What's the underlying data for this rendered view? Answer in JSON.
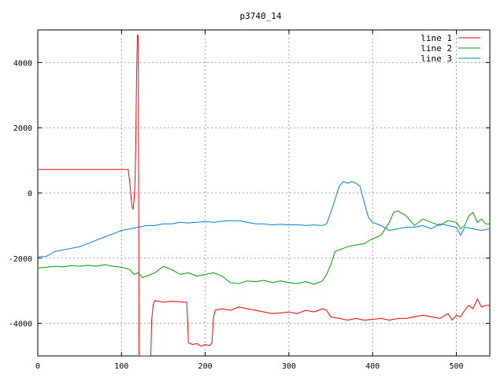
{
  "chart_data": {
    "type": "line",
    "title": "p3740_14",
    "xlim": [
      0,
      540
    ],
    "ylim": [
      -5000,
      5000
    ],
    "x_ticks": [
      0,
      100,
      200,
      300,
      400,
      500
    ],
    "y_ticks": [
      -4000,
      -2000,
      0,
      2000,
      4000
    ],
    "grid": true,
    "legend_position": "top-right",
    "series": [
      {
        "name": "line 1",
        "color": "#ff0000",
        "points": [
          [
            0,
            720
          ],
          [
            20,
            720
          ],
          [
            40,
            720
          ],
          [
            60,
            720
          ],
          [
            80,
            720
          ],
          [
            100,
            720
          ],
          [
            108,
            720
          ],
          [
            110,
            300
          ],
          [
            112,
            -300
          ],
          [
            113,
            -450
          ],
          [
            114,
            -500
          ],
          [
            115,
            -200
          ],
          [
            116,
            200
          ],
          [
            117,
            1500
          ],
          [
            118,
            3500
          ],
          [
            119,
            4850
          ],
          [
            120,
            4800
          ],
          [
            120.5,
            -300
          ],
          [
            121,
            -5000
          ],
          [
            135,
            -5000
          ],
          [
            136,
            -3900
          ],
          [
            138,
            -3400
          ],
          [
            140,
            -3300
          ],
          [
            150,
            -3350
          ],
          [
            160,
            -3320
          ],
          [
            170,
            -3340
          ],
          [
            175,
            -3350
          ],
          [
            178,
            -3350
          ],
          [
            180,
            -4600
          ],
          [
            185,
            -4650
          ],
          [
            190,
            -4620
          ],
          [
            195,
            -4700
          ],
          [
            200,
            -4650
          ],
          [
            205,
            -4680
          ],
          [
            208,
            -4600
          ],
          [
            210,
            -3800
          ],
          [
            212,
            -3600
          ],
          [
            220,
            -3550
          ],
          [
            230,
            -3600
          ],
          [
            240,
            -3500
          ],
          [
            250,
            -3550
          ],
          [
            260,
            -3600
          ],
          [
            270,
            -3650
          ],
          [
            280,
            -3700
          ],
          [
            290,
            -3680
          ],
          [
            300,
            -3650
          ],
          [
            310,
            -3700
          ],
          [
            320,
            -3600
          ],
          [
            330,
            -3650
          ],
          [
            340,
            -3550
          ],
          [
            345,
            -3600
          ],
          [
            350,
            -3800
          ],
          [
            360,
            -3850
          ],
          [
            370,
            -3900
          ],
          [
            380,
            -3850
          ],
          [
            390,
            -3900
          ],
          [
            400,
            -3880
          ],
          [
            410,
            -3850
          ],
          [
            420,
            -3900
          ],
          [
            430,
            -3850
          ],
          [
            440,
            -3850
          ],
          [
            450,
            -3800
          ],
          [
            460,
            -3750
          ],
          [
            470,
            -3800
          ],
          [
            480,
            -3850
          ],
          [
            490,
            -3700
          ],
          [
            495,
            -3900
          ],
          [
            500,
            -3750
          ],
          [
            505,
            -3800
          ],
          [
            510,
            -3600
          ],
          [
            515,
            -3450
          ],
          [
            520,
            -3550
          ],
          [
            525,
            -3250
          ],
          [
            530,
            -3500
          ],
          [
            535,
            -3450
          ],
          [
            540,
            -3450
          ]
        ]
      },
      {
        "name": "line 2",
        "color": "#00a000",
        "points": [
          [
            0,
            -2300
          ],
          [
            10,
            -2280
          ],
          [
            20,
            -2250
          ],
          [
            30,
            -2270
          ],
          [
            40,
            -2230
          ],
          [
            50,
            -2250
          ],
          [
            60,
            -2220
          ],
          [
            70,
            -2250
          ],
          [
            80,
            -2200
          ],
          [
            90,
            -2250
          ],
          [
            100,
            -2280
          ],
          [
            110,
            -2350
          ],
          [
            115,
            -2500
          ],
          [
            120,
            -2450
          ],
          [
            125,
            -2600
          ],
          [
            130,
            -2550
          ],
          [
            140,
            -2450
          ],
          [
            150,
            -2250
          ],
          [
            160,
            -2350
          ],
          [
            170,
            -2500
          ],
          [
            180,
            -2450
          ],
          [
            190,
            -2550
          ],
          [
            200,
            -2500
          ],
          [
            210,
            -2450
          ],
          [
            220,
            -2550
          ],
          [
            230,
            -2750
          ],
          [
            240,
            -2780
          ],
          [
            250,
            -2700
          ],
          [
            260,
            -2720
          ],
          [
            270,
            -2680
          ],
          [
            280,
            -2750
          ],
          [
            290,
            -2700
          ],
          [
            300,
            -2750
          ],
          [
            310,
            -2780
          ],
          [
            320,
            -2720
          ],
          [
            330,
            -2800
          ],
          [
            340,
            -2700
          ],
          [
            345,
            -2500
          ],
          [
            350,
            -2200
          ],
          [
            355,
            -1800
          ],
          [
            360,
            -1750
          ],
          [
            370,
            -1650
          ],
          [
            380,
            -1600
          ],
          [
            390,
            -1550
          ],
          [
            400,
            -1400
          ],
          [
            410,
            -1300
          ],
          [
            420,
            -900
          ],
          [
            425,
            -600
          ],
          [
            430,
            -550
          ],
          [
            440,
            -700
          ],
          [
            450,
            -1000
          ],
          [
            460,
            -800
          ],
          [
            470,
            -900
          ],
          [
            480,
            -1000
          ],
          [
            490,
            -850
          ],
          [
            500,
            -900
          ],
          [
            505,
            -1100
          ],
          [
            510,
            -1000
          ],
          [
            515,
            -700
          ],
          [
            520,
            -600
          ],
          [
            525,
            -900
          ],
          [
            530,
            -800
          ],
          [
            535,
            -950
          ],
          [
            540,
            -950
          ]
        ]
      },
      {
        "name": "line 3",
        "color": "#0080e0",
        "points": [
          [
            0,
            -1950
          ],
          [
            10,
            -1950
          ],
          [
            20,
            -1800
          ],
          [
            30,
            -1750
          ],
          [
            40,
            -1700
          ],
          [
            50,
            -1650
          ],
          [
            60,
            -1550
          ],
          [
            70,
            -1450
          ],
          [
            80,
            -1350
          ],
          [
            90,
            -1250
          ],
          [
            100,
            -1150
          ],
          [
            110,
            -1100
          ],
          [
            120,
            -1050
          ],
          [
            130,
            -1000
          ],
          [
            140,
            -1000
          ],
          [
            150,
            -950
          ],
          [
            160,
            -950
          ],
          [
            170,
            -900
          ],
          [
            180,
            -920
          ],
          [
            190,
            -900
          ],
          [
            200,
            -880
          ],
          [
            210,
            -900
          ],
          [
            220,
            -870
          ],
          [
            230,
            -850
          ],
          [
            240,
            -850
          ],
          [
            250,
            -900
          ],
          [
            260,
            -950
          ],
          [
            270,
            -950
          ],
          [
            280,
            -980
          ],
          [
            290,
            -960
          ],
          [
            300,
            -980
          ],
          [
            310,
            -970
          ],
          [
            320,
            -1000
          ],
          [
            330,
            -980
          ],
          [
            340,
            -1000
          ],
          [
            345,
            -950
          ],
          [
            350,
            -600
          ],
          [
            355,
            -200
          ],
          [
            360,
            200
          ],
          [
            365,
            350
          ],
          [
            370,
            300
          ],
          [
            375,
            350
          ],
          [
            380,
            300
          ],
          [
            385,
            200
          ],
          [
            390,
            -300
          ],
          [
            395,
            -750
          ],
          [
            400,
            -900
          ],
          [
            410,
            -1000
          ],
          [
            420,
            -1150
          ],
          [
            430,
            -1100
          ],
          [
            440,
            -1050
          ],
          [
            450,
            -1050
          ],
          [
            460,
            -1000
          ],
          [
            470,
            -1100
          ],
          [
            480,
            -950
          ],
          [
            490,
            -1000
          ],
          [
            500,
            -1050
          ],
          [
            505,
            -1300
          ],
          [
            510,
            -1050
          ],
          [
            520,
            -1100
          ],
          [
            530,
            -1150
          ],
          [
            540,
            -1100
          ]
        ]
      }
    ]
  }
}
